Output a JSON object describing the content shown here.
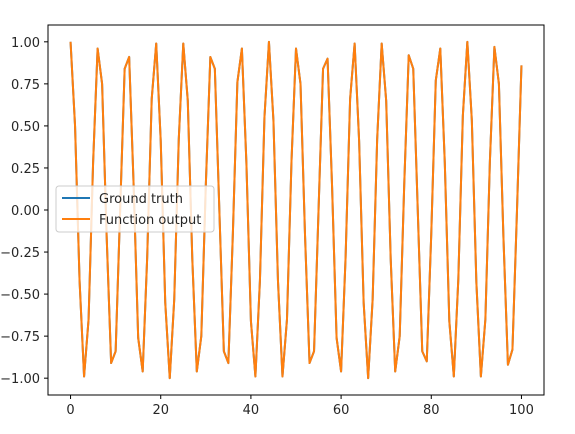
{
  "chart_data": {
    "type": "line",
    "title": "",
    "xlabel": "",
    "ylabel": "",
    "xlim": [
      -5,
      105
    ],
    "ylim": [
      -1.1,
      1.1
    ],
    "x_ticks": [
      0,
      20,
      40,
      60,
      80,
      100
    ],
    "x_tick_labels": [
      "0",
      "20",
      "40",
      "60",
      "80",
      "100"
    ],
    "y_ticks": [
      1.0,
      0.75,
      0.5,
      0.25,
      0.0,
      -0.25,
      -0.5,
      -0.75,
      -1.0
    ],
    "y_tick_labels": [
      "1.00",
      "0.75",
      "0.50",
      "0.25",
      "0.00",
      "−0.25",
      "−0.50",
      "−0.75",
      "−1.00"
    ],
    "grid": false,
    "legend_position": "center-left",
    "x": [
      0,
      1,
      2,
      3,
      4,
      5,
      6,
      7,
      8,
      9,
      10,
      11,
      12,
      13,
      14,
      15,
      16,
      17,
      18,
      19,
      20,
      21,
      22,
      23,
      24,
      25,
      26,
      27,
      28,
      29,
      30,
      31,
      32,
      33,
      34,
      35,
      36,
      37,
      38,
      39,
      40,
      41,
      42,
      43,
      44,
      45,
      46,
      47,
      48,
      49,
      50,
      51,
      52,
      53,
      54,
      55,
      56,
      57,
      58,
      59,
      60,
      61,
      62,
      63,
      64,
      65,
      66,
      67,
      68,
      69,
      70,
      71,
      72,
      73,
      74,
      75,
      76,
      77,
      78,
      79,
      80,
      81,
      82,
      83,
      84,
      85,
      86,
      87,
      88,
      89,
      90,
      91,
      92,
      93,
      94,
      95,
      96,
      97,
      98,
      99,
      100
    ],
    "series": [
      {
        "name": "Ground truth",
        "color": "#1f77b4",
        "values": [
          1.0,
          0.5,
          -0.42,
          -0.99,
          -0.65,
          0.28,
          0.96,
          0.75,
          -0.15,
          -0.91,
          -0.84,
          0.0,
          0.84,
          0.91,
          0.14,
          -0.76,
          -0.96,
          -0.28,
          0.66,
          0.99,
          0.41,
          -0.55,
          -1.0,
          -0.53,
          0.42,
          0.99,
          0.65,
          -0.29,
          -0.96,
          -0.75,
          0.15,
          0.91,
          0.84,
          0.0,
          -0.84,
          -0.91,
          -0.14,
          0.76,
          0.96,
          0.28,
          -0.66,
          -0.99,
          -0.42,
          0.55,
          1.0,
          0.53,
          -0.42,
          -0.99,
          -0.65,
          0.29,
          0.96,
          0.75,
          -0.15,
          -0.91,
          -0.84,
          0.0,
          0.84,
          0.9,
          0.14,
          -0.76,
          -0.96,
          -0.28,
          0.66,
          0.99,
          0.41,
          -0.55,
          -1.0,
          -0.53,
          0.42,
          0.99,
          0.65,
          -0.29,
          -0.96,
          -0.75,
          0.15,
          0.92,
          0.84,
          0.0,
          -0.84,
          -0.9,
          -0.14,
          0.77,
          0.96,
          0.28,
          -0.66,
          -0.99,
          -0.41,
          0.56,
          1.0,
          0.53,
          -0.43,
          -0.99,
          -0.65,
          0.29,
          0.97,
          0.75,
          -0.16,
          -0.92,
          -0.83,
          -0.01,
          0.86
        ]
      },
      {
        "name": "Function output",
        "color": "#ff7f0e",
        "values": [
          1.0,
          0.5,
          -0.42,
          -0.99,
          -0.65,
          0.28,
          0.96,
          0.75,
          -0.15,
          -0.91,
          -0.84,
          0.0,
          0.84,
          0.91,
          0.14,
          -0.76,
          -0.96,
          -0.28,
          0.66,
          0.99,
          0.41,
          -0.55,
          -1.0,
          -0.53,
          0.42,
          0.99,
          0.65,
          -0.29,
          -0.96,
          -0.75,
          0.15,
          0.91,
          0.84,
          0.0,
          -0.84,
          -0.91,
          -0.14,
          0.76,
          0.96,
          0.28,
          -0.66,
          -0.99,
          -0.42,
          0.55,
          1.0,
          0.53,
          -0.42,
          -0.99,
          -0.65,
          0.29,
          0.96,
          0.75,
          -0.15,
          -0.91,
          -0.84,
          0.0,
          0.84,
          0.9,
          0.14,
          -0.76,
          -0.96,
          -0.28,
          0.66,
          0.99,
          0.41,
          -0.55,
          -1.0,
          -0.53,
          0.42,
          0.99,
          0.65,
          -0.29,
          -0.96,
          -0.75,
          0.15,
          0.92,
          0.84,
          0.0,
          -0.84,
          -0.9,
          -0.14,
          0.77,
          0.96,
          0.28,
          -0.66,
          -0.99,
          -0.41,
          0.56,
          1.0,
          0.53,
          -0.43,
          -0.99,
          -0.65,
          0.29,
          0.97,
          0.75,
          -0.16,
          -0.92,
          -0.83,
          -0.01,
          0.86
        ]
      }
    ]
  }
}
